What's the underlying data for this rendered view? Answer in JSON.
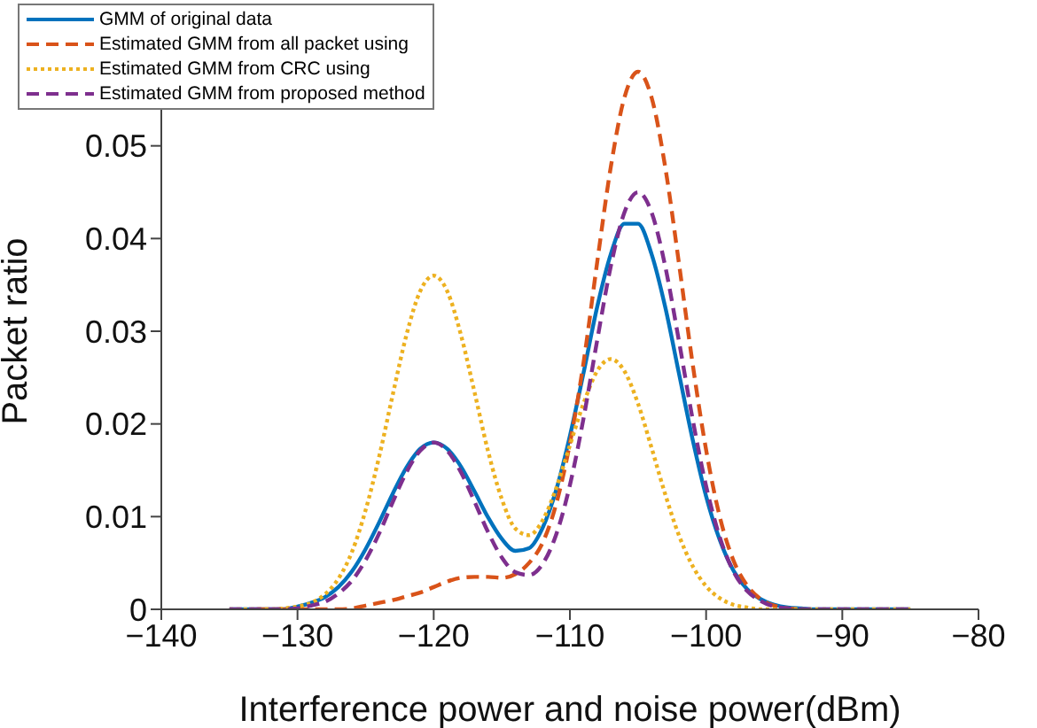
{
  "chart_data": {
    "type": "line",
    "xlabel": "Interference power and noise power(dBm)",
    "ylabel": "Packet ratio",
    "x": [
      -135,
      -134,
      -133,
      -132,
      -131,
      -130,
      -129,
      -128,
      -127,
      -126,
      -125,
      -124,
      -123,
      -122,
      -121,
      -120,
      -119,
      -118,
      -117,
      -116,
      -115,
      -114,
      -113,
      -112,
      -111,
      -110,
      -109,
      -108,
      -107,
      -106,
      -105,
      -104,
      -103,
      -102,
      -101,
      -100,
      -99,
      -98,
      -97,
      -96,
      -95,
      -94,
      -93,
      -92,
      -91,
      -90,
      -89,
      -88,
      -87,
      -86,
      -85
    ],
    "series": [
      {
        "name": "GMM of original data",
        "color": "#0072bd",
        "line_style": "solid",
        "values": [
          0,
          0,
          0,
          0,
          0,
          0.0003,
          0.0007,
          0.0013,
          0.0024,
          0.0041,
          0.0065,
          0.0094,
          0.0125,
          0.0153,
          0.0173,
          0.018,
          0.0173,
          0.0154,
          0.0127,
          0.0099,
          0.0076,
          0.0063,
          0.0066,
          0.0088,
          0.0129,
          0.0187,
          0.0255,
          0.0326,
          0.0383,
          0.0416,
          0.0416,
          0.0383,
          0.0326,
          0.0255,
          0.0184,
          0.0122,
          0.0075,
          0.0042,
          0.0022,
          0.0011,
          0.0005,
          0.0002,
          0.0001,
          0,
          0,
          0,
          0,
          0,
          0,
          0,
          0
        ]
      },
      {
        "name": "Estimated GMM from all packet using",
        "color": "#d95319",
        "line_style": "dashed",
        "values": [
          null,
          null,
          0,
          0,
          0,
          0,
          0,
          0,
          0,
          0.0001,
          0.0004,
          0.0007,
          0.001,
          0.0014,
          0.0018,
          0.0024,
          0.003,
          0.0034,
          0.0035,
          0.0035,
          0.0034,
          0.0038,
          0.005,
          0.0072,
          0.0114,
          0.0179,
          0.0266,
          0.0374,
          0.0477,
          0.0552,
          0.058,
          0.0552,
          0.0477,
          0.0374,
          0.0266,
          0.0172,
          0.01,
          0.0053,
          0.0026,
          0.0011,
          0.0004,
          0.0001,
          0,
          null,
          null,
          null,
          null,
          null,
          null,
          null,
          null
        ]
      },
      {
        "name": "Estimated GMM from CRC using",
        "color": "#edb120",
        "line_style": "dotted",
        "values": [
          0,
          0,
          0,
          0,
          0.0001,
          0.0003,
          0.0007,
          0.0016,
          0.0033,
          0.0062,
          0.0107,
          0.0165,
          0.0232,
          0.0296,
          0.0343,
          0.036,
          0.0343,
          0.0296,
          0.0234,
          0.017,
          0.0119,
          0.0087,
          0.008,
          0.0096,
          0.0131,
          0.0177,
          0.0222,
          0.0257,
          0.027,
          0.0257,
          0.0222,
          0.0174,
          0.0124,
          0.008,
          0.0047,
          0.0025,
          0.0012,
          0.0005,
          0.0002,
          0,
          0,
          0,
          0,
          0,
          0,
          0,
          0,
          0,
          0,
          0,
          0
        ]
      },
      {
        "name": "Estimated GMM from proposed method",
        "color": "#7e2f8e",
        "line_style": "dashed",
        "values": [
          0,
          0,
          0,
          0,
          0,
          0.0001,
          0.0004,
          0.0008,
          0.0017,
          0.0031,
          0.0053,
          0.0082,
          0.0116,
          0.0148,
          0.0171,
          0.018,
          0.0171,
          0.0148,
          0.0116,
          0.0083,
          0.0056,
          0.004,
          0.0037,
          0.0049,
          0.0081,
          0.0134,
          0.0206,
          0.029,
          0.037,
          0.0428,
          0.045,
          0.0428,
          0.037,
          0.029,
          0.0206,
          0.0133,
          0.0078,
          0.0041,
          0.002,
          0.0009,
          0.0003,
          0.0001,
          0,
          0,
          0,
          0,
          0,
          0,
          0,
          0,
          0
        ]
      }
    ],
    "xlim": [
      -140,
      -80
    ],
    "xticks": [
      -140,
      -130,
      -120,
      -110,
      -100,
      -90,
      -80
    ],
    "ylim": [
      0,
      0.06
    ],
    "yticks": [
      0,
      0.01,
      0.02,
      0.03,
      0.04,
      0.05
    ],
    "grid": false,
    "legend": "top left",
    "marker": "none"
  }
}
